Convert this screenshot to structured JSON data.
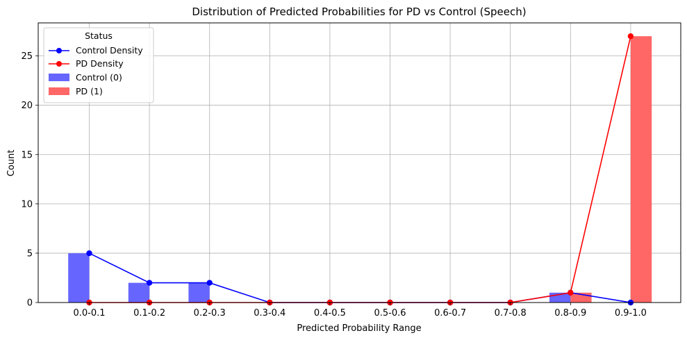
{
  "chart_data": {
    "type": "bar",
    "title": "Distribution of Predicted Probabilities for PD vs Control (Speech)",
    "xlabel": "Predicted Probability Range",
    "ylabel": "Count",
    "categories": [
      "0.0-0.1",
      "0.1-0.2",
      "0.2-0.3",
      "0.3-0.4",
      "0.4-0.5",
      "0.5-0.6",
      "0.6-0.7",
      "0.7-0.8",
      "0.8-0.9",
      "0.9-1.0"
    ],
    "ylim": [
      0,
      28.35
    ],
    "yticks": [
      0,
      5,
      10,
      15,
      20,
      25
    ],
    "grid": true,
    "legend": {
      "title": "Status",
      "placement": "top-left"
    },
    "bar_series": [
      {
        "name": "Control (0)",
        "color": "#6666ff",
        "values": [
          5,
          2,
          2,
          0,
          0,
          0,
          0,
          0,
          1,
          0
        ]
      },
      {
        "name": "PD (1)",
        "color": "#ff6666",
        "values": [
          0,
          0,
          0,
          0,
          0,
          0,
          0,
          0,
          1,
          27
        ]
      }
    ],
    "line_series": [
      {
        "name": "Control Density",
        "color": "#0000ff",
        "values": [
          5,
          2,
          2,
          0,
          0,
          0,
          0,
          0,
          1,
          0
        ]
      },
      {
        "name": "PD Density",
        "color": "#ff0000",
        "values": [
          0,
          0,
          0,
          0,
          0,
          0,
          0,
          0,
          1,
          27
        ]
      }
    ]
  }
}
